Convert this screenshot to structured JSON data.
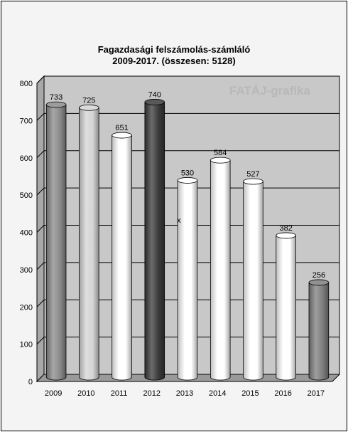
{
  "chart_data": {
    "type": "bar",
    "title": "Fagazdasági felszámolás-számláló",
    "subtitle": "2009-2017. (összesen: 5128)",
    "watermark": "FATÁJ-grafika",
    "marker": "x",
    "categories": [
      "2009",
      "2010",
      "2011",
      "2012",
      "2013",
      "2014",
      "2015",
      "2016",
      "2017"
    ],
    "values": [
      733,
      725,
      651,
      740,
      530,
      584,
      527,
      382,
      256
    ],
    "bar_colors": [
      "#8a8a8a",
      "#d4d4d4",
      "#ffffff",
      "#3a3a3a",
      "#ffffff",
      "#ffffff",
      "#ffffff",
      "#ffffff",
      "#7e7e7e"
    ],
    "ylim": [
      0,
      800
    ],
    "yticks": [
      0,
      100,
      200,
      300,
      400,
      500,
      600,
      700,
      800
    ],
    "grid": true,
    "legend": "none",
    "xlabel": "",
    "ylabel": ""
  }
}
